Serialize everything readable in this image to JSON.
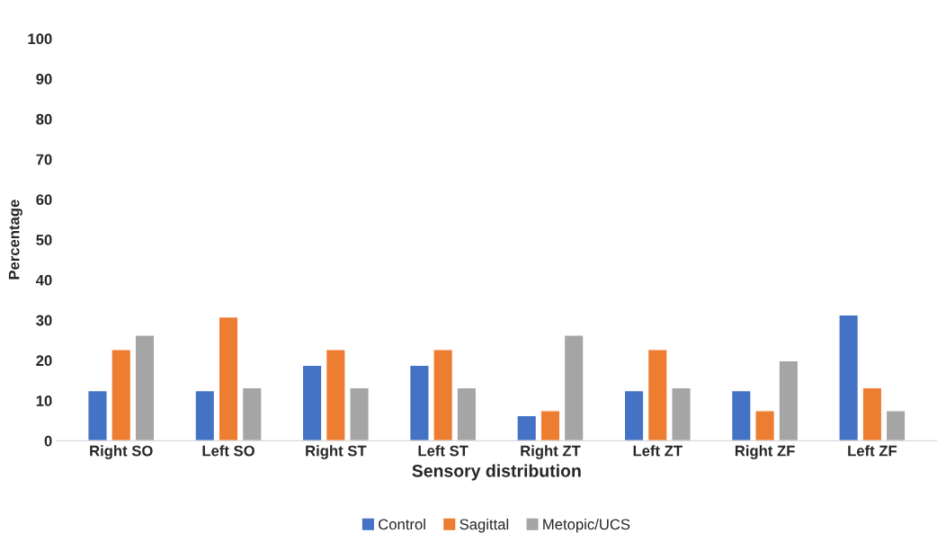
{
  "chart_data": {
    "type": "bar",
    "xlabel": "Sensory distribution",
    "ylabel": "Percentage",
    "categories": [
      "Right SO",
      "Left SO",
      "Right ST",
      "Left ST",
      "Right ZT",
      "Left ZT",
      "Right ZF",
      "Left ZF"
    ],
    "series": [
      {
        "name": "Control",
        "color": "#4472c4",
        "values": [
          12.5,
          12.5,
          18.8,
          18.8,
          6.3,
          12.5,
          12.5,
          31.3
        ]
      },
      {
        "name": "Sagittal",
        "color": "#ed7d31",
        "values": [
          22.7,
          30.8,
          22.7,
          22.7,
          7.5,
          22.7,
          7.5,
          13.2
        ]
      },
      {
        "name": "Metopic/UCS",
        "color": "#a5a5a5",
        "values": [
          26.3,
          13.2,
          13.2,
          13.2,
          26.3,
          13.2,
          19.9,
          7.5
        ]
      }
    ],
    "ylim": [
      0,
      100
    ],
    "yticks": [
      0,
      10,
      20,
      30,
      40,
      50,
      60,
      70,
      80,
      90,
      100
    ],
    "grid": false,
    "legend": "bottom"
  }
}
